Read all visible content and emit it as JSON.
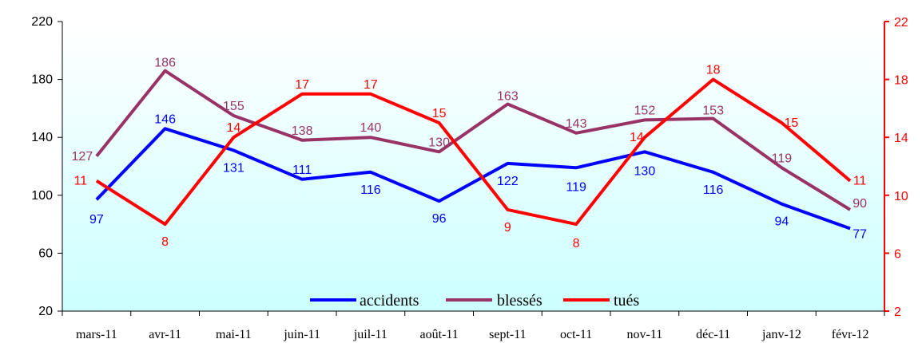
{
  "chart_data": {
    "type": "line",
    "categories": [
      "mars-11",
      "avr-11",
      "mai-11",
      "juin-11",
      "juil-11",
      "août-11",
      "sept-11",
      "oct-11",
      "nov-11",
      "déc-11",
      "janv-12",
      "févr-12"
    ],
    "y_left": {
      "min": 20,
      "max": 220,
      "ticks": [
        "20",
        "60",
        "100",
        "140",
        "180",
        "220"
      ]
    },
    "y_right": {
      "min": 2,
      "max": 22,
      "ticks": [
        "2",
        "6",
        "10",
        "14",
        "18",
        "22"
      ]
    },
    "series": [
      {
        "name": "accidents",
        "axis": "left",
        "color": "#0000ff",
        "label_color": "#0000ff",
        "values": [
          97,
          146,
          131,
          111,
          116,
          96,
          122,
          119,
          130,
          116,
          94,
          77
        ],
        "labels": [
          "97",
          "146",
          "131",
          "111",
          "116",
          "96",
          "122",
          "119",
          "130",
          "116",
          "94",
          "77"
        ]
      },
      {
        "name": "blessés",
        "axis": "left",
        "color": "#993366",
        "label_color": "#993366",
        "values": [
          127,
          186,
          155,
          138,
          140,
          130,
          163,
          143,
          152,
          153,
          119,
          90
        ],
        "labels": [
          "127",
          "186",
          "155",
          "138",
          "140",
          "130",
          "163",
          "143",
          "152",
          "153",
          "119",
          "90"
        ]
      },
      {
        "name": "tués",
        "axis": "right",
        "color": "#ff0000",
        "label_color": "#ff0000",
        "values": [
          11,
          8,
          14,
          17,
          17,
          15,
          9,
          8,
          14,
          18,
          15,
          11
        ],
        "labels": [
          "11",
          "8",
          "14",
          "17",
          "17",
          "15",
          "9",
          "8",
          "14",
          "18",
          "15",
          "11"
        ]
      }
    ],
    "legend": {
      "position": "bottom-center",
      "entries": [
        "accidents",
        "blessés",
        "tués"
      ]
    },
    "background": {
      "top_color": "#ffffff",
      "bottom_color": "#ccffff"
    },
    "grid": false
  }
}
